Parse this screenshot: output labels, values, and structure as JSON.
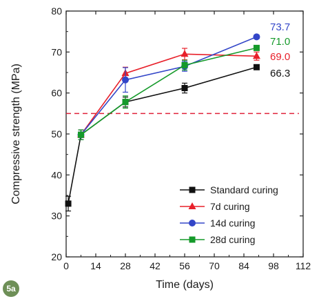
{
  "chart_data": {
    "type": "line",
    "xlabel": "Time (days)",
    "ylabel": "Compressive strength (MPa)",
    "xlim": [
      0,
      112
    ],
    "ylim": [
      20,
      80
    ],
    "xticks": [
      0,
      14,
      28,
      42,
      56,
      70,
      84,
      98,
      112
    ],
    "yticks": [
      20,
      30,
      40,
      50,
      60,
      70,
      80
    ],
    "legend_position": "bottom-right",
    "reference_line": {
      "y": 55,
      "style": "dashed",
      "color": "#e0203a"
    },
    "series": [
      {
        "name": "Standard curing",
        "color": "#111111",
        "marker": "square",
        "x": [
          1,
          7,
          28,
          56,
          90
        ],
        "y": [
          33.0,
          49.8,
          57.8,
          61.2,
          66.3
        ],
        "err": [
          1.8,
          1.2,
          1.2,
          1.2,
          0.6
        ],
        "end_label": "66.3"
      },
      {
        "name": "7d curing",
        "color": "#e8202a",
        "marker": "triangle",
        "x": [
          7,
          28,
          56,
          90
        ],
        "y": [
          49.8,
          64.8,
          69.5,
          69.0
        ],
        "err": [
          1.2,
          1.5,
          1.4,
          1.0
        ],
        "end_label": "69.0"
      },
      {
        "name": "14d curing",
        "color": "#3346c8",
        "marker": "circle",
        "x": [
          7,
          28,
          56,
          90
        ],
        "y": [
          49.8,
          63.2,
          66.5,
          73.7
        ],
        "err": [
          1.2,
          3.0,
          1.2,
          0.5
        ],
        "end_label": "73.7"
      },
      {
        "name": "28d curing",
        "color": "#159a2a",
        "marker": "square",
        "x": [
          7,
          28,
          56,
          90
        ],
        "y": [
          49.8,
          57.8,
          66.8,
          71.0
        ],
        "err": [
          1.2,
          1.5,
          1.2,
          0.6
        ],
        "end_label": "71.0"
      }
    ]
  },
  "panel_label": "5a"
}
